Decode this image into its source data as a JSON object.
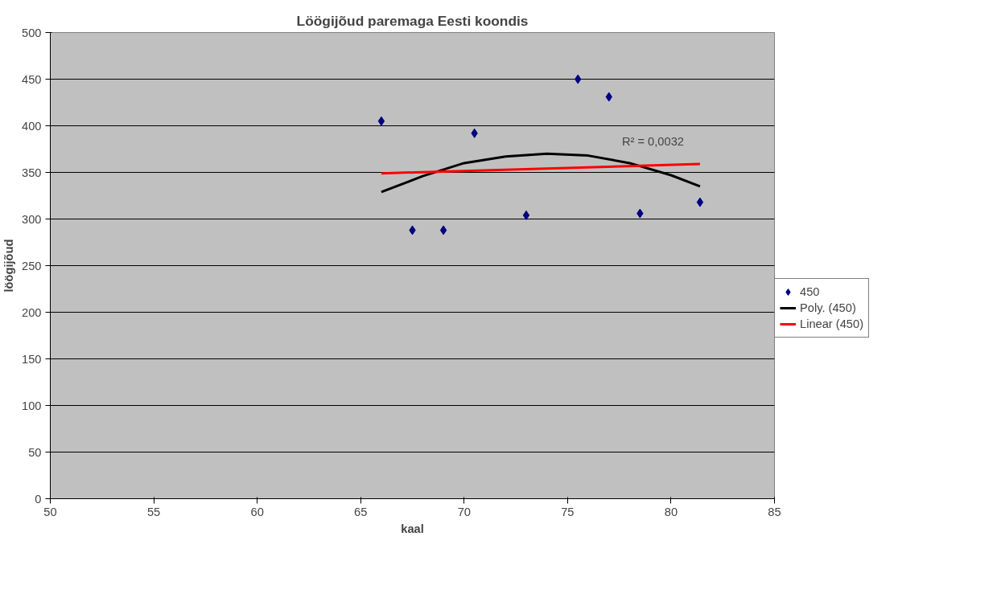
{
  "chart_data": {
    "type": "scatter",
    "title": "Löögijõud paremaga Eesti koondis",
    "xlabel": "kaal",
    "ylabel": "löögijõud",
    "xlim": [
      50,
      85
    ],
    "xticks": [
      50,
      55,
      60,
      65,
      70,
      75,
      80,
      85
    ],
    "ylim": [
      0,
      500
    ],
    "yticks": [
      0,
      50,
      100,
      150,
      200,
      250,
      300,
      350,
      400,
      450,
      500
    ],
    "grid": "y",
    "legend": "right",
    "series": [
      {
        "name": "450",
        "color": "#000080",
        "marker": "diamond",
        "x": [
          66,
          67.5,
          69,
          70.5,
          73,
          75.5,
          77,
          78.5,
          81.4
        ],
        "values": [
          405,
          288,
          288,
          392,
          304,
          450,
          431,
          306,
          318
        ]
      },
      {
        "name": "Poly. (450)",
        "type": "line",
        "marker": "none",
        "color": "#000000",
        "x": [
          66,
          68,
          70,
          72,
          74,
          76,
          78,
          80,
          81.4
        ],
        "values": [
          329,
          346,
          360,
          367,
          370,
          368,
          360,
          347,
          335
        ]
      },
      {
        "name": "Linear (450)",
        "type": "line",
        "marker": "none",
        "color": "#ff0000",
        "x": [
          66,
          81.4
        ],
        "values": [
          349,
          359
        ]
      }
    ],
    "annotations": [
      "R² = 0,0032"
    ]
  }
}
